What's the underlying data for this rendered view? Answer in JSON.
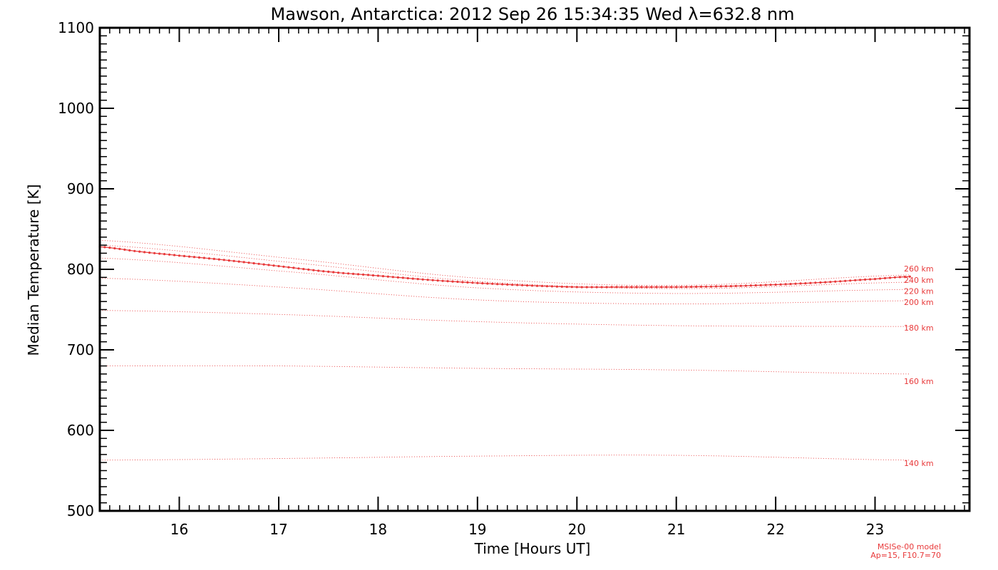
{
  "chart_data": {
    "type": "line",
    "title": "Mawson, Antarctica: 2012 Sep 26 15:34:35 Wed λ=632.8 nm",
    "xlabel": "Time [Hours UT]",
    "ylabel": "Median Temperature [K]",
    "xlim": [
      15.2,
      23.95
    ],
    "ylim": [
      500,
      1100
    ],
    "x_ticks": [
      16,
      17,
      18,
      19,
      20,
      21,
      22,
      23
    ],
    "y_ticks": [
      500,
      600,
      700,
      800,
      900,
      1000,
      1100
    ],
    "grid": false,
    "colors": {
      "series": "#e8393a",
      "axis": "#000000"
    },
    "series": [
      {
        "name": "",
        "style": "solid-dotted",
        "x": [
          15.2,
          15.6,
          16.0,
          16.5,
          17.0,
          17.5,
          18.0,
          18.5,
          19.0,
          19.5,
          20.0,
          20.5,
          21.0,
          21.5,
          22.0,
          22.5,
          23.0,
          23.35
        ],
        "y": [
          828,
          822,
          817,
          811,
          804,
          797,
          792,
          787,
          783,
          780,
          778,
          778,
          778,
          779,
          781,
          784,
          788,
          791
        ]
      }
    ],
    "model_curves": [
      {
        "name": "140 km",
        "x": [
          15.2,
          17.0,
          19.0,
          21.0,
          23.35
        ],
        "y": [
          563,
          565,
          568,
          569,
          563
        ]
      },
      {
        "name": "160 km",
        "x": [
          15.2,
          17.0,
          19.0,
          21.0,
          23.35
        ],
        "y": [
          680,
          680,
          677,
          675,
          670
        ]
      },
      {
        "name": "180 km",
        "x": [
          15.2,
          17.0,
          19.0,
          21.0,
          23.35
        ],
        "y": [
          749,
          744,
          735,
          730,
          729
        ]
      },
      {
        "name": "200 km",
        "x": [
          15.2,
          17.0,
          19.0,
          21.0,
          23.35
        ],
        "y": [
          789,
          778,
          762,
          757,
          761
        ]
      },
      {
        "name": "220 km",
        "x": [
          15.2,
          17.0,
          19.0,
          21.0,
          23.35
        ],
        "y": [
          814,
          798,
          777,
          770,
          775
        ]
      },
      {
        "name": "240 km",
        "x": [
          15.2,
          17.0,
          19.0,
          21.0,
          23.35
        ],
        "y": [
          830,
          810,
          785,
          776,
          784
        ]
      },
      {
        "name": "260 km",
        "x": [
          15.2,
          17.0,
          19.0,
          21.0,
          23.35
        ],
        "y": [
          836,
          815,
          789,
          780,
          793
        ]
      }
    ],
    "annotations": [
      "MSISe-00 model",
      "Ap=15, F10.7=70"
    ]
  }
}
